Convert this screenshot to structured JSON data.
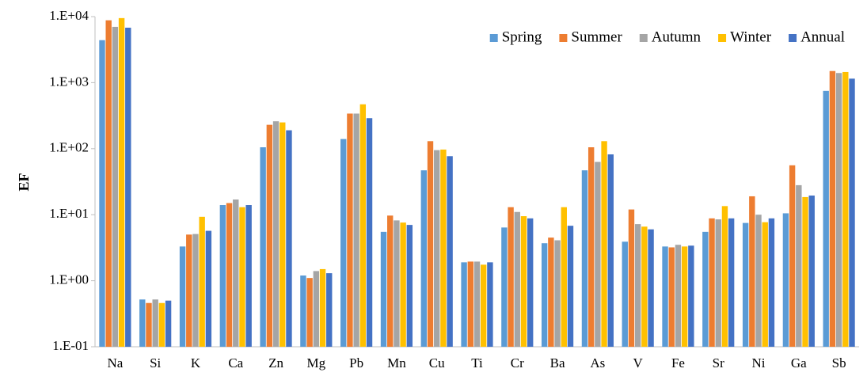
{
  "chart_data": {
    "type": "bar",
    "ylabel": "EF",
    "log_scale": true,
    "grid": false,
    "legend": "upper right",
    "categories": [
      "Na",
      "Si",
      "K",
      "Ca",
      "Zn",
      "Mg",
      "Pb",
      "Mn",
      "Cu",
      "Ti",
      "Cr",
      "Ba",
      "As",
      "V",
      "Fe",
      "Sr",
      "Ni",
      "Ga",
      "Sb"
    ],
    "series": [
      {
        "name": "Spring",
        "color": "#5b9bd5",
        "values": [
          4400,
          0.52,
          3.3,
          14,
          105,
          1.2,
          140,
          5.5,
          47,
          1.9,
          6.4,
          3.7,
          47,
          3.9,
          3.3,
          5.5,
          7.5,
          10.5,
          750
        ]
      },
      {
        "name": "Summer",
        "color": "#ed7d31",
        "values": [
          8800,
          0.46,
          5.0,
          15,
          230,
          1.1,
          340,
          9.7,
          130,
          1.95,
          13,
          4.5,
          105,
          12,
          3.2,
          8.8,
          19,
          56,
          1500
        ]
      },
      {
        "name": "Autumn",
        "color": "#a5a5a5",
        "values": [
          7000,
          0.52,
          5.1,
          17,
          260,
          1.4,
          340,
          8.2,
          95,
          1.95,
          11,
          4.1,
          63,
          7.2,
          3.5,
          8.5,
          10,
          28,
          1400
        ]
      },
      {
        "name": "Winter",
        "color": "#ffc000",
        "values": [
          9500,
          0.46,
          9.3,
          13,
          250,
          1.5,
          470,
          7.6,
          97,
          1.75,
          9.5,
          13,
          130,
          6.6,
          3.3,
          13.5,
          7.7,
          18.5,
          1450
        ]
      },
      {
        "name": "Annual",
        "color": "#4472c4",
        "values": [
          6800,
          0.5,
          5.7,
          14,
          190,
          1.3,
          290,
          7.0,
          77,
          1.9,
          8.8,
          6.8,
          82,
          6.0,
          3.4,
          8.8,
          8.8,
          19.5,
          1150
        ]
      }
    ],
    "ylim": [
      0.1,
      10000
    ],
    "yticks": [
      {
        "value": 0.1,
        "label": "1.E-01"
      },
      {
        "value": 1,
        "label": "1.E+00"
      },
      {
        "value": 10,
        "label": "1.E+01"
      },
      {
        "value": 100,
        "label": "1.E+02"
      },
      {
        "value": 1000,
        "label": "1.E+03"
      },
      {
        "value": 10000,
        "label": "1.E+04"
      }
    ]
  }
}
